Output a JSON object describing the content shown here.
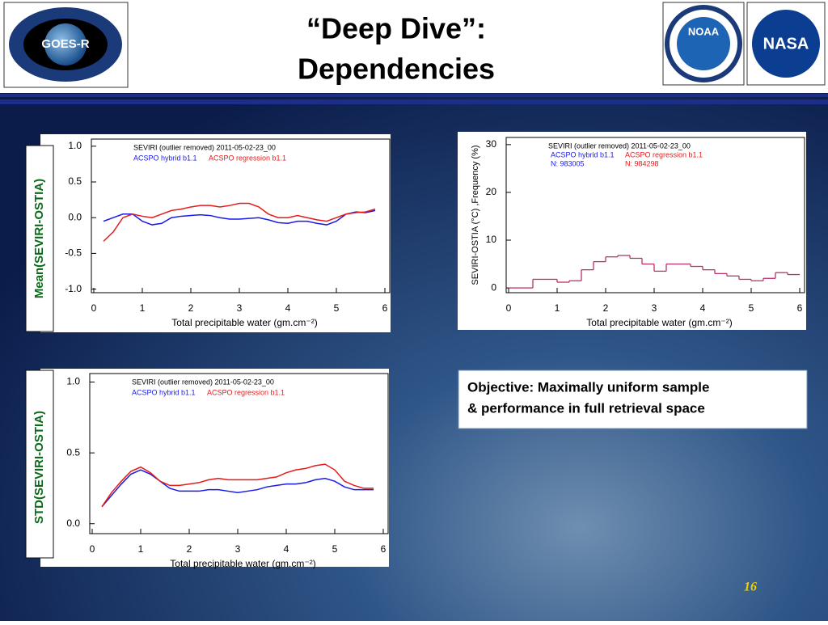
{
  "slide": {
    "title_lines": [
      "“Deep Dive”:",
      "Dependencies"
    ],
    "logos": [
      "GOES-R",
      "NOAA",
      "NASA"
    ],
    "objective": [
      "Objective: Maximally uniform sample",
      "& performance in full retrieval space"
    ],
    "page_number": "16"
  },
  "chart_data": [
    {
      "type": "line",
      "ylabel": "Mean(SEVIRI-OSTIA)",
      "xlabel": "Total precipitable water (gm.cm⁻²)",
      "annotation": "SEVIRI (outlier removed)  2011-05-02-23_00",
      "x": [
        0.2,
        0.4,
        0.6,
        0.8,
        1.0,
        1.2,
        1.4,
        1.6,
        1.8,
        2.0,
        2.2,
        2.4,
        2.6,
        2.8,
        3.0,
        3.2,
        3.4,
        3.6,
        3.8,
        4.0,
        4.2,
        4.4,
        4.6,
        4.8,
        5.0,
        5.2,
        5.4,
        5.6,
        5.8
      ],
      "series": [
        {
          "name": "ACSPO hybrid b1.1",
          "color": "#1a1ae6",
          "values": [
            -0.05,
            0.0,
            0.05,
            0.05,
            -0.05,
            -0.1,
            -0.08,
            0.0,
            0.02,
            0.03,
            0.04,
            0.03,
            0.0,
            -0.02,
            -0.02,
            -0.01,
            0.0,
            -0.03,
            -0.07,
            -0.08,
            -0.05,
            -0.05,
            -0.08,
            -0.1,
            -0.05,
            0.05,
            0.08,
            0.07,
            0.1
          ]
        },
        {
          "name": "ACSPO regression b1.1",
          "color": "#e61a1a",
          "values": [
            -0.33,
            -0.2,
            0.0,
            0.05,
            0.02,
            0.0,
            0.05,
            0.1,
            0.12,
            0.15,
            0.17,
            0.17,
            0.15,
            0.17,
            0.2,
            0.2,
            0.15,
            0.05,
            0.0,
            0.0,
            0.03,
            0.0,
            -0.03,
            -0.05,
            0.0,
            0.05,
            0.07,
            0.08,
            0.12
          ]
        }
      ],
      "xlim": [
        -0.05,
        6.1
      ],
      "xticks": [
        0,
        1,
        2,
        3,
        4,
        5,
        6
      ],
      "ylim": [
        -1.05,
        1.1
      ],
      "yticks": [
        {
          "value": -1,
          "label": "-1.0"
        },
        -0.5,
        {
          "value": 0,
          "label": "0.0"
        },
        0.5,
        {
          "value": 1,
          "label": "1.0"
        }
      ]
    },
    {
      "type": "histogram",
      "ylabel": "SEVIRI-OSTIA (°C) ,Frequency (%)",
      "xlabel": "Total precipitable water (gm.cm⁻²)",
      "annotation": "SEVIRI (outlier removed)  2011-05-02-23_00",
      "legend": [
        {
          "name": "ACSPO hybrid b1.1",
          "color": "#1a1ae6",
          "n": "N: 983005"
        },
        {
          "name": "ACSPO regression b1.1",
          "color": "#e61a1a",
          "n": "N: 984298"
        }
      ],
      "color": "#b8336a",
      "bins": [
        0,
        0.25,
        0.5,
        0.75,
        1.0,
        1.25,
        1.5,
        1.75,
        2.0,
        2.25,
        2.5,
        2.75,
        3.0,
        3.25,
        3.5,
        3.75,
        4.0,
        4.25,
        4.5,
        4.75,
        5.0,
        5.25,
        5.5,
        5.75,
        6.0
      ],
      "values": [
        0,
        0,
        1.8,
        1.8,
        1.2,
        1.5,
        3.8,
        5.5,
        6.5,
        6.8,
        6.2,
        5,
        3.5,
        5,
        5,
        4.5,
        3.8,
        3,
        2.5,
        1.8,
        1.5,
        2,
        3.2,
        2.8
      ],
      "xlim": [
        -0.05,
        6.1
      ],
      "xticks": [
        0,
        1,
        2,
        3,
        4,
        5,
        6
      ],
      "ylim": [
        -1,
        31.5
      ],
      "yticks": [
        0,
        10,
        20,
        30
      ]
    },
    {
      "type": "line",
      "ylabel": "STD(SEVIRI-OSTIA)",
      "xlabel": "Total precipitable water (gm.cm⁻²)",
      "annotation": "SEVIRI (outlier removed)  2011-05-02-23_00",
      "x": [
        0.2,
        0.4,
        0.6,
        0.8,
        1.0,
        1.2,
        1.4,
        1.6,
        1.8,
        2.0,
        2.2,
        2.4,
        2.6,
        2.8,
        3.0,
        3.2,
        3.4,
        3.6,
        3.8,
        4.0,
        4.2,
        4.4,
        4.6,
        4.8,
        5.0,
        5.2,
        5.4,
        5.6,
        5.8
      ],
      "series": [
        {
          "name": "ACSPO hybrid b1.1",
          "color": "#1a1ae6",
          "values": [
            0.12,
            0.2,
            0.28,
            0.35,
            0.38,
            0.35,
            0.3,
            0.25,
            0.23,
            0.23,
            0.23,
            0.24,
            0.24,
            0.23,
            0.22,
            0.23,
            0.24,
            0.26,
            0.27,
            0.28,
            0.28,
            0.29,
            0.31,
            0.32,
            0.3,
            0.26,
            0.24,
            0.24,
            0.24
          ]
        },
        {
          "name": "ACSPO regression b1.1",
          "color": "#e61a1a",
          "values": [
            0.12,
            0.22,
            0.3,
            0.37,
            0.4,
            0.36,
            0.3,
            0.27,
            0.27,
            0.28,
            0.29,
            0.31,
            0.32,
            0.31,
            0.31,
            0.31,
            0.31,
            0.32,
            0.33,
            0.36,
            0.38,
            0.39,
            0.41,
            0.42,
            0.38,
            0.3,
            0.27,
            0.25,
            0.25
          ]
        }
      ],
      "xlim": [
        -0.05,
        6.1
      ],
      "xticks": [
        0,
        1,
        2,
        3,
        4,
        5,
        6
      ],
      "ylim": [
        -0.07,
        1.06
      ],
      "yticks": [
        {
          "value": 0,
          "label": "0.0"
        },
        0.5,
        {
          "value": 1,
          "label": "1.0"
        }
      ]
    }
  ]
}
